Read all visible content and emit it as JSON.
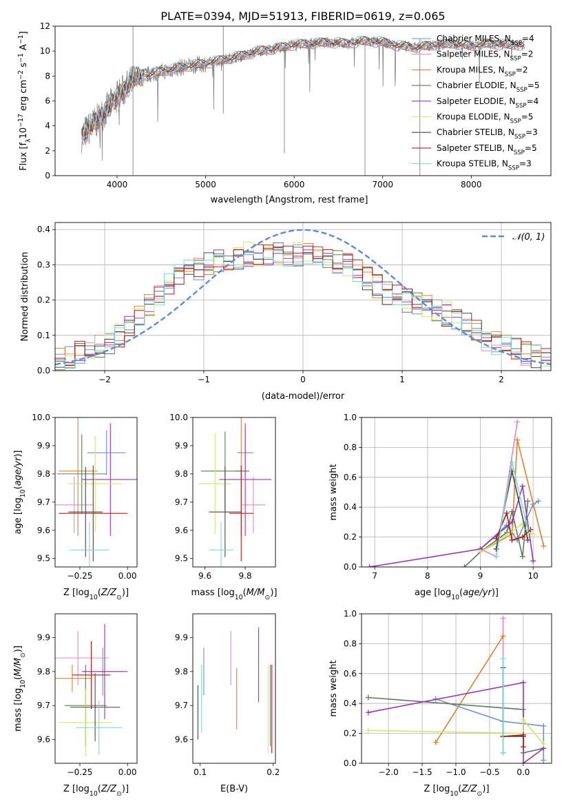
{
  "title": "PLATE=0394, MJD=51913, FIBERID=0619, z=0.065",
  "colors": {
    "series": [
      "#6a8fd8",
      "#e884c2",
      "#e0802a",
      "#5a7a5a",
      "#9a35b0",
      "#cde86a",
      "#444444",
      "#b01818",
      "#7ad8dc"
    ],
    "gaussian": "#5b8bd8",
    "data": "#808080"
  },
  "legend": [
    "Chabrier MILES, N_SSP=4",
    "Salpeter MILES, N_SSP=2",
    "Kroupa MILES, N_SSP=2",
    "Chabrier ELODIE, N_SSP=5",
    "Salpeter ELODIE, N_SSP=4",
    "Kroupa ELODIE, N_SSP=5",
    "Chabrier STELIB, N_SSP=3",
    "Salpeter STELIB, N_SSP=5",
    "Kroupa STELIB, N_SSP=3"
  ],
  "chart_data": [
    {
      "id": "spectrum",
      "type": "line",
      "xlabel": "wavelength [Angstrom, rest frame]",
      "ylabel": "Flux [f_λ10^-17 erg cm^-2 s^-1 A^-1]",
      "xlim": [
        3300,
        8900
      ],
      "ylim": [
        0,
        12
      ],
      "xticks": [
        4000,
        5000,
        6000,
        7000,
        8000
      ],
      "yticks": [
        0,
        2,
        4,
        6,
        8,
        10,
        12
      ],
      "grid": false,
      "legend_position": "right",
      "continuum": {
        "x": [
          3600,
          3800,
          4000,
          4200,
          4400,
          4600,
          4800,
          5000,
          5200,
          5400,
          5600,
          5800,
          6000,
          6200,
          6400,
          6600,
          6800,
          7000,
          7200,
          7400,
          7600,
          7800,
          8000,
          8200,
          8400,
          8600
        ],
        "y": [
          3.2,
          4.6,
          6.3,
          7.8,
          8.2,
          8.5,
          8.8,
          9.0,
          9.3,
          9.6,
          10.0,
          10.2,
          10.5,
          10.6,
          10.7,
          10.6,
          10.8,
          10.7,
          10.4,
          10.3,
          10.5,
          10.6,
          10.4,
          10.6,
          10.5,
          10.5
        ]
      },
      "features": [
        {
          "x": 4180,
          "min": 0.0,
          "max": 12.0
        },
        {
          "x": 5200,
          "min": 5.0,
          "max": 12.0
        },
        {
          "x": 5890,
          "min": 1.8,
          "max": 10.5
        },
        {
          "x": 6800,
          "min": 0.0,
          "max": 11.0
        },
        {
          "x": 7420,
          "min": 0.0,
          "max": 11.0
        }
      ]
    },
    {
      "id": "residuals",
      "type": "histogram",
      "xlabel": "(data-model)/error",
      "ylabel": "Normed distribution",
      "xlim": [
        -2.5,
        2.5
      ],
      "ylim": [
        0,
        0.42
      ],
      "xticks": [
        -2,
        -1,
        0,
        1,
        2
      ],
      "yticks": [
        0.0,
        0.1,
        0.2,
        0.3,
        0.4
      ],
      "grid": true,
      "legend": "𝒩(0, 1)",
      "legend_position": "top-right",
      "bin_edges_range": [
        -2.5,
        2.5
      ],
      "bins": 50,
      "typical_values": [
        0.03,
        0.04,
        0.05,
        0.06,
        0.07,
        0.08,
        0.1,
        0.13,
        0.16,
        0.19,
        0.22,
        0.25,
        0.27,
        0.28,
        0.29,
        0.3,
        0.31,
        0.32,
        0.32,
        0.33,
        0.33,
        0.33,
        0.33,
        0.33,
        0.33,
        0.33,
        0.32,
        0.32,
        0.31,
        0.3,
        0.28,
        0.26,
        0.24,
        0.22,
        0.21,
        0.2,
        0.19,
        0.18,
        0.17,
        0.16,
        0.15,
        0.13,
        0.11,
        0.09,
        0.08,
        0.07,
        0.06,
        0.05,
        0.04,
        0.03
      ]
    },
    {
      "id": "age_vs_Z",
      "type": "scatter",
      "xlabel": "Z [log10(Z/Z⊙)]",
      "ylabel": "age  [log10(age/yr)]",
      "xlim": [
        -0.38,
        0.05
      ],
      "ylim": [
        9.47,
        10.0
      ],
      "xticks": [
        -0.25,
        0.0
      ],
      "yticks": [
        9.5,
        9.6,
        9.7,
        9.8,
        9.9,
        10.0
      ],
      "points": [
        {
          "x": -0.11,
          "y": 9.875,
          "xerr": 0.1,
          "yerr": 0.08
        },
        {
          "x": -0.28,
          "y": 9.69,
          "xerr": 0.1,
          "yerr": 0.1
        },
        {
          "x": -0.26,
          "y": 9.81,
          "xerr": 0.1,
          "yerr": 0.23
        },
        {
          "x": -0.24,
          "y": 9.8,
          "xerr": 0.13,
          "yerr": 0.14
        },
        {
          "x": -0.09,
          "y": 9.78,
          "xerr": 0.15,
          "yerr": 0.2
        },
        {
          "x": -0.17,
          "y": 9.765,
          "xerr": 0.14,
          "yerr": 0.17
        },
        {
          "x": -0.22,
          "y": 9.665,
          "xerr": 0.09,
          "yerr": 0.16
        },
        {
          "x": -0.18,
          "y": 9.66,
          "xerr": 0.18,
          "yerr": 0.17
        },
        {
          "x": -0.2,
          "y": 9.53,
          "xerr": 0.1,
          "yerr": 0.1
        }
      ]
    },
    {
      "id": "age_vs_mass",
      "type": "scatter",
      "xlabel": "mass [log10(M/M⊙)]",
      "ylabel": "",
      "xlim": [
        9.54,
        9.95
      ],
      "ylim": [
        9.47,
        10.0
      ],
      "xticks": [
        9.6,
        9.8
      ],
      "yticks": [
        9.5,
        9.6,
        9.7,
        9.8,
        9.9,
        10.0
      ],
      "points": [
        {
          "x": 9.8,
          "y": 9.875,
          "xerr": 0.04,
          "yerr": 0.08
        },
        {
          "x": 9.84,
          "y": 9.69,
          "xerr": 0.06,
          "yerr": 0.1
        },
        {
          "x": 9.78,
          "y": 9.81,
          "xerr": 0.03,
          "yerr": 0.23
        },
        {
          "x": 9.7,
          "y": 9.81,
          "xerr": 0.12,
          "yerr": 0.14
        },
        {
          "x": 9.8,
          "y": 9.78,
          "xerr": 0.13,
          "yerr": 0.2
        },
        {
          "x": 9.65,
          "y": 9.765,
          "xerr": 0.08,
          "yerr": 0.18
        },
        {
          "x": 9.7,
          "y": 9.665,
          "xerr": 0.08,
          "yerr": 0.16
        },
        {
          "x": 9.78,
          "y": 9.66,
          "xerr": 0.06,
          "yerr": 0.17
        },
        {
          "x": 9.68,
          "y": 9.53,
          "xerr": 0.06,
          "yerr": 0.1
        }
      ]
    },
    {
      "id": "weight_vs_age",
      "type": "line",
      "xlabel": "age  [log10(age/yr)]",
      "ylabel": "mass weight",
      "xlim": [
        6.75,
        10.35
      ],
      "ylim": [
        0,
        1
      ],
      "xticks": [
        7,
        8,
        9,
        10
      ],
      "yticks": [
        0.0,
        0.2,
        0.4,
        0.6,
        0.8,
        1.0
      ],
      "grid": true,
      "series": [
        {
          "x": [
            9.0,
            9.5,
            9.7,
            10.0,
            10.1
          ],
          "y": [
            0.12,
            0.28,
            0.18,
            0.42,
            0.44
          ]
        },
        {
          "x": [
            9.0,
            9.3,
            9.7
          ],
          "y": [
            0.12,
            0.07,
            0.97
          ]
        },
        {
          "x": [
            9.0,
            9.6,
            9.7,
            10.2
          ],
          "y": [
            0.1,
            0.22,
            0.85,
            0.14
          ]
        },
        {
          "x": [
            8.7,
            9.0,
            9.5,
            9.6,
            9.8,
            9.9
          ],
          "y": [
            0.0,
            0.1,
            0.23,
            0.37,
            0.07,
            0.44
          ]
        },
        {
          "x": [
            6.9,
            9.0,
            9.6,
            9.8,
            10.0
          ],
          "y": [
            0.0,
            0.12,
            0.3,
            0.54,
            0.04
          ]
        },
        {
          "x": [
            9.0,
            9.5,
            9.8,
            9.9,
            10.0
          ],
          "y": [
            0.1,
            0.21,
            0.29,
            0.23,
            0.22
          ]
        },
        {
          "x": [
            9.3,
            9.6,
            9.9
          ],
          "y": [
            0.12,
            0.64,
            0.18
          ]
        },
        {
          "x": [
            9.3,
            9.5,
            9.6,
            9.8,
            9.95
          ],
          "y": [
            0.19,
            0.36,
            0.18,
            0.2,
            0.25
          ]
        },
        {
          "x": [
            9.3,
            9.6,
            9.9
          ],
          "y": [
            0.07,
            0.7,
            0.25
          ]
        }
      ]
    },
    {
      "id": "mass_vs_Z",
      "type": "scatter",
      "xlabel": "Z [log10(Z/Z⊙)]",
      "ylabel": "mass [log10(M/M⊙)]",
      "xlim": [
        -0.38,
        0.05
      ],
      "ylim": [
        9.53,
        9.97
      ],
      "xticks": [
        -0.25,
        0.0
      ],
      "yticks": [
        9.6,
        9.7,
        9.8,
        9.9
      ],
      "points": [
        {
          "x": -0.13,
          "y": 9.8,
          "xerr": 0.1,
          "yerr": 0.07
        },
        {
          "x": -0.26,
          "y": 9.84,
          "xerr": 0.16,
          "yerr": 0.08
        },
        {
          "x": -0.29,
          "y": 9.78,
          "xerr": 0.1,
          "yerr": 0.04
        },
        {
          "x": -0.22,
          "y": 9.7,
          "xerr": 0.11,
          "yerr": 0.12
        },
        {
          "x": -0.12,
          "y": 9.8,
          "xerr": 0.12,
          "yerr": 0.14
        },
        {
          "x": -0.22,
          "y": 9.65,
          "xerr": 0.14,
          "yerr": 0.1
        },
        {
          "x": -0.17,
          "y": 9.695,
          "xerr": 0.13,
          "yerr": 0.1
        },
        {
          "x": -0.19,
          "y": 9.79,
          "xerr": 0.1,
          "yerr": 0.1
        },
        {
          "x": -0.15,
          "y": 9.635,
          "xerr": 0.12,
          "yerr": 0.08
        }
      ]
    },
    {
      "id": "mass_vs_ebv",
      "type": "scatter",
      "xlabel": "E(B-V)",
      "ylabel": "",
      "xlim": [
        0.09,
        0.203
      ],
      "ylim": [
        9.53,
        9.97
      ],
      "xticks": [
        0.1,
        0.2
      ],
      "yticks": [
        9.6,
        9.7,
        9.8,
        9.9
      ],
      "points": [
        {
          "x": 0.105,
          "y": 9.8,
          "yerr": 0.07
        },
        {
          "x": 0.142,
          "y": 9.84,
          "yerr": 0.08
        },
        {
          "x": 0.15,
          "y": 9.72,
          "yerr": 0.09
        },
        {
          "x": 0.196,
          "y": 9.7,
          "yerr": 0.12
        },
        {
          "x": 0.18,
          "y": 9.82,
          "yerr": 0.11
        },
        {
          "x": 0.193,
          "y": 9.69,
          "yerr": 0.13
        },
        {
          "x": 0.097,
          "y": 9.68,
          "yerr": 0.08
        },
        {
          "x": 0.198,
          "y": 9.69,
          "yerr": 0.13
        },
        {
          "x": 0.102,
          "y": 9.72,
          "yerr": 0.1
        }
      ]
    },
    {
      "id": "weight_vs_Z",
      "type": "line",
      "xlabel": "Z [log10(Z/Z⊙)]",
      "ylabel": "mass weight",
      "xlim": [
        -2.4,
        0.42
      ],
      "ylim": [
        0,
        1
      ],
      "xticks": [
        -2.0,
        -1.5,
        -1.0,
        -0.5,
        0.0
      ],
      "yticks": [
        0.0,
        0.2,
        0.4,
        0.6,
        0.8,
        1.0
      ],
      "grid": true,
      "series": [
        {
          "x": [
            -1.3,
            -0.3,
            0.3,
            0.3
          ],
          "y": [
            0.43,
            0.28,
            0.25,
            0.02
          ]
        },
        {
          "x": [
            -0.3,
            -0.3
          ],
          "y": [
            0.97,
            0.07
          ]
        },
        {
          "x": [
            -1.3,
            -0.3
          ],
          "y": [
            0.14,
            0.85
          ]
        },
        {
          "x": [
            -2.3,
            0.0,
            0.0,
            0.3
          ],
          "y": [
            0.44,
            0.36,
            0.07,
            0.1
          ]
        },
        {
          "x": [
            -2.3,
            0.0,
            0.0,
            0.3
          ],
          "y": [
            0.34,
            0.54,
            0.0,
            0.1
          ]
        },
        {
          "x": [
            -2.3,
            0.0,
            0.0,
            0.3
          ],
          "y": [
            0.22,
            0.2,
            0.29,
            0.13
          ]
        },
        {
          "x": [
            -0.3,
            -0.3,
            0.0
          ],
          "y": [
            0.64,
            0.18,
            0.18
          ]
        },
        {
          "x": [
            -0.3,
            0.0,
            0.0
          ],
          "y": [
            0.18,
            0.19,
            0.11
          ]
        },
        {
          "x": [
            -0.3,
            -0.3
          ],
          "y": [
            0.7,
            0.07
          ]
        }
      ]
    }
  ]
}
